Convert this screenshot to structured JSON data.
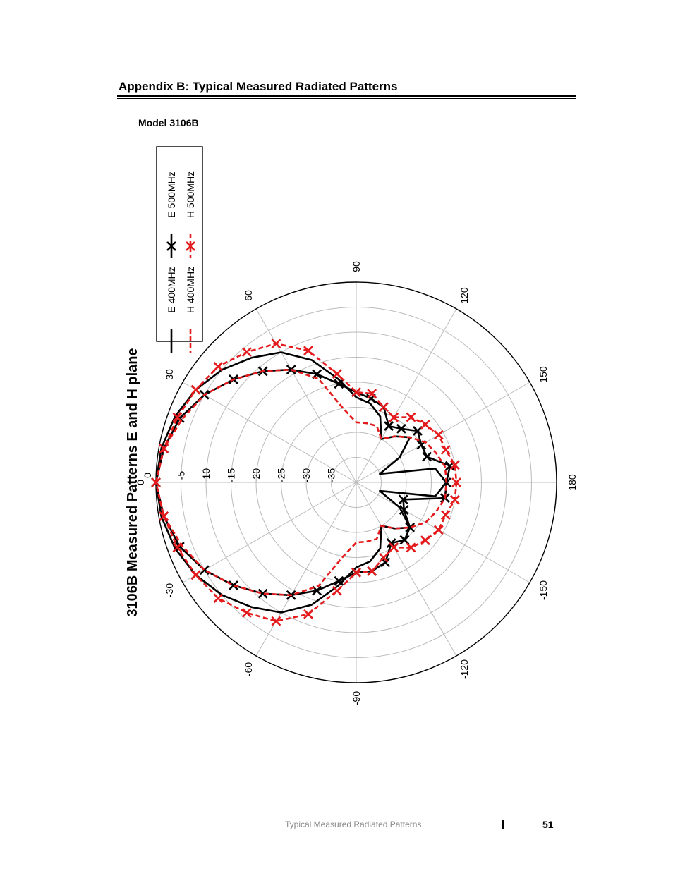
{
  "document": {
    "heading": "Appendix B:  Typical Measured Radiated Patterns",
    "section": "Model 3106B",
    "footer_text": "Typical Measured Radiated Patterns",
    "page_number": "51"
  },
  "chart_data": {
    "type": "polar",
    "title": "3106B Measured Patterns E and H plane",
    "radial_unit": "dB",
    "radial_range": [
      -40,
      0
    ],
    "radial_ticks": [
      "0",
      "-5",
      "-10",
      "-15",
      "-20",
      "-25",
      "-30",
      "-35"
    ],
    "angle_ticks": [
      "0",
      "30",
      "60",
      "90",
      "120",
      "150",
      "180",
      "-150",
      "-120",
      "-90",
      "-60",
      "-30"
    ],
    "grid": true,
    "legend": "top-right",
    "colors": {
      "black": "#000000",
      "red": "#e41a1c",
      "grid": "#bbbbbb"
    },
    "angles": [
      0,
      10,
      20,
      30,
      40,
      50,
      60,
      70,
      80,
      90,
      100,
      110,
      120,
      130,
      140,
      150,
      160,
      170,
      180,
      -170,
      -160,
      -150,
      -140,
      -130,
      -120,
      -110,
      -100,
      -90,
      -80,
      -70,
      -60,
      -50,
      -40,
      -30,
      -20,
      -10
    ],
    "series": [
      {
        "name": "E 400MHz",
        "color": "#000000",
        "style": "solid",
        "marker": "none",
        "values": [
          0,
          -0.5,
          -1.5,
          -3,
          -5,
          -7.5,
          -10,
          -14,
          -19,
          -23,
          -24,
          -26,
          -30,
          -28,
          -26,
          -30,
          -35,
          -24,
          -22,
          -24,
          -35,
          -30,
          -26,
          -28,
          -30,
          -26,
          -24,
          -23,
          -19,
          -14,
          -10,
          -7.5,
          -5,
          -3,
          -1.5,
          -0.5
        ]
      },
      {
        "name": "E 500MHz",
        "color": "#000000",
        "style": "solid",
        "marker": "x",
        "values": [
          0,
          -1,
          -2.5,
          -5,
          -8,
          -11,
          -14,
          -17,
          -20,
          -22,
          -23,
          -24,
          -27,
          -26,
          -24,
          -25,
          -25,
          -21,
          -22,
          -22,
          -30,
          -29,
          -26,
          -25,
          -26,
          -23,
          -22,
          -22,
          -20,
          -17,
          -14,
          -11,
          -8,
          -5,
          -2.5,
          -1
        ]
      },
      {
        "name": "H 400MHz",
        "color": "#e41a1c",
        "style": "dashed",
        "marker": "none",
        "values": [
          0,
          -1,
          -3,
          -5,
          -8,
          -11,
          -14,
          -18,
          -25,
          -28,
          -28,
          -28,
          -30,
          -28,
          -26,
          -24,
          -23,
          -22,
          -22,
          -22,
          -23,
          -24,
          -26,
          -28,
          -30,
          -28,
          -28,
          -28,
          -25,
          -18,
          -14,
          -11,
          -8,
          -5,
          -3,
          -1
        ]
      },
      {
        "name": "H 500MHz",
        "color": "#e41a1c",
        "style": "dashed",
        "marker": "x",
        "values": [
          0,
          -1,
          -2,
          -3,
          -4,
          -6,
          -8,
          -12,
          -18,
          -22,
          -22,
          -24,
          -25,
          -23,
          -22,
          -21,
          -21,
          -20,
          -20,
          -20,
          -21,
          -21,
          -22,
          -23,
          -25,
          -24,
          -22,
          -22,
          -18,
          -12,
          -8,
          -6,
          -4,
          -3,
          -2,
          -1
        ]
      }
    ]
  }
}
